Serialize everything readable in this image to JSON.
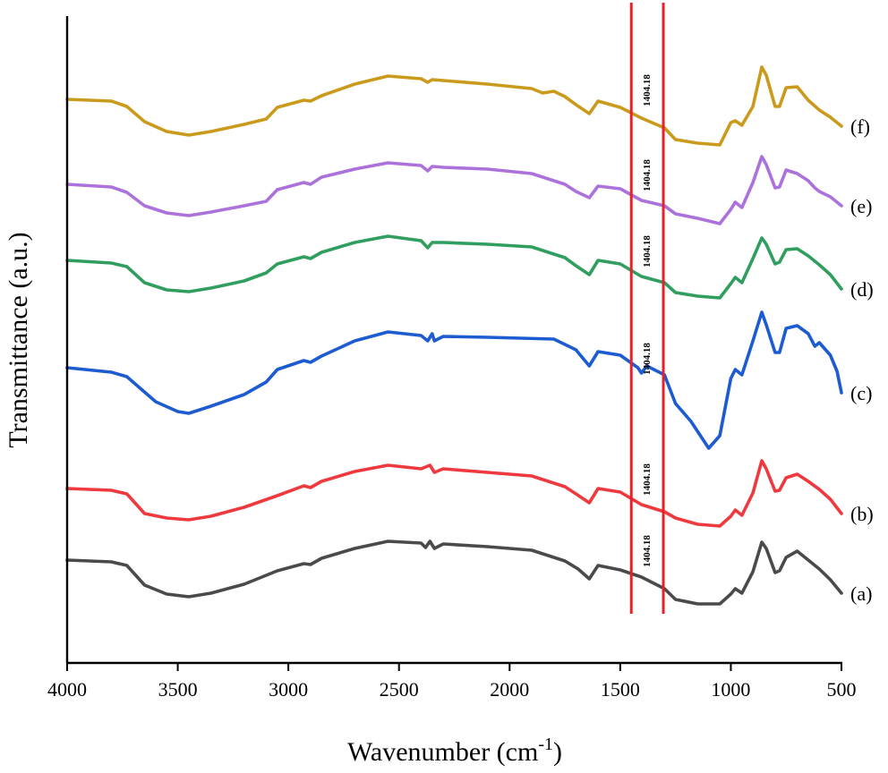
{
  "chart_data": {
    "type": "line",
    "xlabel": "Wavenumber (cm",
    "xlabel_sup": "-1",
    "xlabel_tail": ")",
    "ylabel": "Transmittance (a.u.)",
    "xlim": [
      4000,
      500
    ],
    "x_reversed": true,
    "x_ticks": [
      "4000",
      "3500",
      "3000",
      "2500",
      "2000",
      "1500",
      "1000",
      "500"
    ],
    "y_ticks": [],
    "grid": false,
    "reference_lines": [
      {
        "x": 1450,
        "color": "#e8202a"
      },
      {
        "x": 1305,
        "color": "#e8202a"
      }
    ],
    "series": [
      {
        "label": "(a)",
        "color": "#4a4a4a",
        "offset": 0,
        "annotation": "1404.18",
        "points": [
          [
            4000,
            0
          ],
          [
            3800,
            -2
          ],
          [
            3730,
            -6
          ],
          [
            3650,
            -28
          ],
          [
            3550,
            -38
          ],
          [
            3450,
            -41
          ],
          [
            3350,
            -37
          ],
          [
            3200,
            -27
          ],
          [
            3050,
            -12
          ],
          [
            2930,
            -4
          ],
          [
            2900,
            -5
          ],
          [
            2850,
            2
          ],
          [
            2700,
            13
          ],
          [
            2550,
            21
          ],
          [
            2400,
            19
          ],
          [
            2380,
            14
          ],
          [
            2360,
            21
          ],
          [
            2340,
            13
          ],
          [
            2300,
            18
          ],
          [
            2100,
            15
          ],
          [
            1900,
            11
          ],
          [
            1750,
            -1
          ],
          [
            1690,
            -10
          ],
          [
            1640,
            -21
          ],
          [
            1600,
            -6
          ],
          [
            1500,
            -11
          ],
          [
            1404,
            -19
          ],
          [
            1300,
            -32
          ],
          [
            1250,
            -44
          ],
          [
            1150,
            -49
          ],
          [
            1050,
            -49
          ],
          [
            1000,
            -38
          ],
          [
            980,
            -32
          ],
          [
            950,
            -37
          ],
          [
            900,
            -13
          ],
          [
            860,
            20
          ],
          [
            840,
            13
          ],
          [
            800,
            -14
          ],
          [
            780,
            -12
          ],
          [
            750,
            3
          ],
          [
            700,
            10
          ],
          [
            650,
            0
          ],
          [
            600,
            -10
          ],
          [
            550,
            -22
          ],
          [
            500,
            -37
          ]
        ]
      },
      {
        "label": "(b)",
        "color": "#ee3a3f",
        "offset": 80,
        "annotation": "1404.18",
        "points": [
          [
            4000,
            0
          ],
          [
            3800,
            -2
          ],
          [
            3730,
            -6
          ],
          [
            3650,
            -28
          ],
          [
            3550,
            -33
          ],
          [
            3450,
            -35
          ],
          [
            3350,
            -31
          ],
          [
            3200,
            -21
          ],
          [
            3050,
            -8
          ],
          [
            2930,
            3
          ],
          [
            2900,
            1
          ],
          [
            2850,
            8
          ],
          [
            2700,
            19
          ],
          [
            2550,
            26
          ],
          [
            2400,
            22
          ],
          [
            2360,
            26
          ],
          [
            2340,
            18
          ],
          [
            2300,
            22
          ],
          [
            2100,
            18
          ],
          [
            1900,
            14
          ],
          [
            1750,
            2
          ],
          [
            1700,
            -6
          ],
          [
            1640,
            -16
          ],
          [
            1600,
            0
          ],
          [
            1500,
            -4
          ],
          [
            1404,
            -18
          ],
          [
            1300,
            -26
          ],
          [
            1250,
            -33
          ],
          [
            1150,
            -40
          ],
          [
            1050,
            -42
          ],
          [
            1000,
            -31
          ],
          [
            980,
            -24
          ],
          [
            950,
            -30
          ],
          [
            900,
            -5
          ],
          [
            860,
            31
          ],
          [
            840,
            22
          ],
          [
            800,
            -3
          ],
          [
            780,
            -2
          ],
          [
            750,
            12
          ],
          [
            700,
            16
          ],
          [
            650,
            8
          ],
          [
            600,
            -1
          ],
          [
            550,
            -12
          ],
          [
            500,
            -28
          ]
        ]
      },
      {
        "label": "(c)",
        "color": "#1d5bd0",
        "offset": 215,
        "annotation": "1404.18",
        "points": [
          [
            4000,
            0
          ],
          [
            3800,
            -5
          ],
          [
            3730,
            -10
          ],
          [
            3600,
            -38
          ],
          [
            3500,
            -49
          ],
          [
            3450,
            -51
          ],
          [
            3350,
            -43
          ],
          [
            3200,
            -30
          ],
          [
            3100,
            -16
          ],
          [
            3050,
            -2
          ],
          [
            2930,
            8
          ],
          [
            2900,
            6
          ],
          [
            2850,
            13
          ],
          [
            2700,
            30
          ],
          [
            2550,
            40
          ],
          [
            2400,
            36
          ],
          [
            2370,
            30
          ],
          [
            2350,
            38
          ],
          [
            2340,
            30
          ],
          [
            2300,
            35
          ],
          [
            2100,
            34
          ],
          [
            1800,
            32
          ],
          [
            1700,
            20
          ],
          [
            1640,
            2
          ],
          [
            1600,
            18
          ],
          [
            1500,
            14
          ],
          [
            1420,
            0
          ],
          [
            1404,
            -6
          ],
          [
            1380,
            2
          ],
          [
            1300,
            -8
          ],
          [
            1250,
            -40
          ],
          [
            1180,
            -60
          ],
          [
            1100,
            -90
          ],
          [
            1050,
            -76
          ],
          [
            1000,
            -12
          ],
          [
            980,
            -2
          ],
          [
            950,
            -8
          ],
          [
            900,
            30
          ],
          [
            860,
            62
          ],
          [
            840,
            48
          ],
          [
            800,
            17
          ],
          [
            780,
            17
          ],
          [
            750,
            44
          ],
          [
            700,
            47
          ],
          [
            650,
            38
          ],
          [
            620,
            24
          ],
          [
            600,
            28
          ],
          [
            550,
            14
          ],
          [
            520,
            -4
          ],
          [
            500,
            -28
          ]
        ]
      },
      {
        "label": "(d)",
        "color": "#2f9e5f",
        "offset": 335,
        "annotation": "1404.18",
        "points": [
          [
            4000,
            0
          ],
          [
            3800,
            -3
          ],
          [
            3730,
            -7
          ],
          [
            3650,
            -25
          ],
          [
            3550,
            -33
          ],
          [
            3450,
            -35
          ],
          [
            3350,
            -31
          ],
          [
            3200,
            -23
          ],
          [
            3100,
            -14
          ],
          [
            3050,
            -4
          ],
          [
            2930,
            4
          ],
          [
            2900,
            2
          ],
          [
            2850,
            9
          ],
          [
            2700,
            20
          ],
          [
            2550,
            27
          ],
          [
            2400,
            22
          ],
          [
            2370,
            14
          ],
          [
            2350,
            20
          ],
          [
            2300,
            20
          ],
          [
            2100,
            18
          ],
          [
            1900,
            15
          ],
          [
            1750,
            3
          ],
          [
            1700,
            -6
          ],
          [
            1640,
            -16
          ],
          [
            1600,
            0
          ],
          [
            1500,
            -4
          ],
          [
            1404,
            -18
          ],
          [
            1300,
            -25
          ],
          [
            1250,
            -36
          ],
          [
            1150,
            -40
          ],
          [
            1050,
            -42
          ],
          [
            1000,
            -26
          ],
          [
            980,
            -19
          ],
          [
            950,
            -25
          ],
          [
            900,
            2
          ],
          [
            860,
            25
          ],
          [
            840,
            18
          ],
          [
            800,
            -4
          ],
          [
            780,
            -2
          ],
          [
            750,
            12
          ],
          [
            700,
            13
          ],
          [
            650,
            5
          ],
          [
            600,
            -5
          ],
          [
            550,
            -16
          ],
          [
            500,
            -32
          ]
        ]
      },
      {
        "label": "(e)",
        "color": "#ac72dc",
        "offset": 420,
        "annotation": "1404.18",
        "points": [
          [
            4000,
            0
          ],
          [
            3800,
            -3
          ],
          [
            3730,
            -9
          ],
          [
            3650,
            -24
          ],
          [
            3550,
            -32
          ],
          [
            3450,
            -35
          ],
          [
            3350,
            -31
          ],
          [
            3200,
            -24
          ],
          [
            3100,
            -19
          ],
          [
            3050,
            -6
          ],
          [
            2930,
            2
          ],
          [
            2900,
            0
          ],
          [
            2850,
            8
          ],
          [
            2700,
            17
          ],
          [
            2550,
            24
          ],
          [
            2400,
            21
          ],
          [
            2370,
            15
          ],
          [
            2350,
            20
          ],
          [
            2300,
            19
          ],
          [
            2100,
            17
          ],
          [
            1900,
            12
          ],
          [
            1750,
            0
          ],
          [
            1700,
            -8
          ],
          [
            1640,
            -15
          ],
          [
            1600,
            -2
          ],
          [
            1500,
            -5
          ],
          [
            1404,
            -18
          ],
          [
            1300,
            -24
          ],
          [
            1250,
            -33
          ],
          [
            1150,
            -38
          ],
          [
            1050,
            -44
          ],
          [
            1000,
            -28
          ],
          [
            980,
            -20
          ],
          [
            950,
            -26
          ],
          [
            900,
            2
          ],
          [
            860,
            31
          ],
          [
            840,
            22
          ],
          [
            800,
            -4
          ],
          [
            780,
            -3
          ],
          [
            750,
            16
          ],
          [
            700,
            12
          ],
          [
            650,
            4
          ],
          [
            620,
            -4
          ],
          [
            600,
            -8
          ],
          [
            550,
            -14
          ],
          [
            500,
            -24
          ]
        ]
      },
      {
        "label": "(f)",
        "color": "#c99a1c",
        "offset": 515,
        "annotation": "1404.18",
        "points": [
          [
            4000,
            0
          ],
          [
            3800,
            -2
          ],
          [
            3730,
            -8
          ],
          [
            3650,
            -25
          ],
          [
            3550,
            -36
          ],
          [
            3450,
            -40
          ],
          [
            3350,
            -36
          ],
          [
            3200,
            -28
          ],
          [
            3100,
            -22
          ],
          [
            3050,
            -9
          ],
          [
            2930,
            -1
          ],
          [
            2900,
            -2
          ],
          [
            2850,
            4
          ],
          [
            2700,
            17
          ],
          [
            2550,
            26
          ],
          [
            2400,
            23
          ],
          [
            2370,
            19
          ],
          [
            2350,
            22
          ],
          [
            2300,
            21
          ],
          [
            2100,
            17
          ],
          [
            1900,
            12
          ],
          [
            1850,
            7
          ],
          [
            1800,
            9
          ],
          [
            1750,
            3
          ],
          [
            1700,
            -6
          ],
          [
            1640,
            -16
          ],
          [
            1600,
            -2
          ],
          [
            1500,
            -9
          ],
          [
            1404,
            -21
          ],
          [
            1300,
            -32
          ],
          [
            1250,
            -45
          ],
          [
            1150,
            -49
          ],
          [
            1050,
            -51
          ],
          [
            1000,
            -26
          ],
          [
            980,
            -24
          ],
          [
            950,
            -29
          ],
          [
            900,
            -8
          ],
          [
            860,
            36
          ],
          [
            840,
            27
          ],
          [
            800,
            -8
          ],
          [
            780,
            -8
          ],
          [
            750,
            13
          ],
          [
            700,
            14
          ],
          [
            650,
            -1
          ],
          [
            600,
            -12
          ],
          [
            550,
            -20
          ],
          [
            500,
            -30
          ]
        ]
      }
    ]
  }
}
